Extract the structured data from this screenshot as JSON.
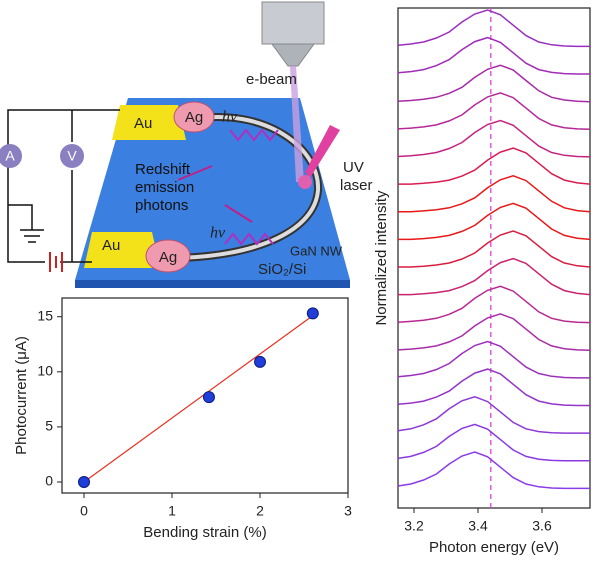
{
  "diagram": {
    "e_beam": "e-beam",
    "au_top": "Au",
    "ag_top": "Ag",
    "au_bottom": "Au",
    "ag_bottom": "Ag",
    "hv_top": "hν",
    "hv_bottom": "hν",
    "uv": "UV",
    "laser": "laser",
    "redshift": "Redshift",
    "emission": "emission",
    "photons": "photons",
    "gan": "GaN NW",
    "substrate": "SiO₂/Si",
    "ammeter": "A",
    "voltmeter": "V"
  },
  "chart_data": [
    {
      "type": "scatter",
      "x_label": "Bending strain (%)",
      "y_label": "Photocurrent (μA)",
      "x": [
        0,
        1.42,
        2,
        2.6
      ],
      "values": [
        0,
        7.7,
        10.9,
        15.3
      ],
      "color": "#1f3fd8",
      "xlim": [
        -0.25,
        3
      ],
      "ylim": [
        -1,
        16.7
      ],
      "xticks": [
        0,
        1,
        2,
        3
      ],
      "yticks": [
        0,
        5,
        10,
        15
      ],
      "fit_line": {
        "x": [
          0,
          2.6
        ],
        "values": [
          0,
          15.1
        ],
        "color": "#e83020"
      }
    },
    {
      "type": "line",
      "x_label": "Photon energy (eV)",
      "y_label": "Normalized intensity",
      "x": [
        3.15,
        3.19,
        3.23,
        3.27,
        3.31,
        3.35,
        3.39,
        3.43,
        3.47,
        3.51,
        3.55,
        3.59,
        3.63,
        3.67,
        3.71,
        3.75
      ],
      "xlim": [
        3.15,
        3.75
      ],
      "xticks": [
        3.2,
        3.4,
        3.6
      ],
      "reference_line": {
        "x": 3.44,
        "color": "#e040e0"
      },
      "series": [
        {
          "color": "#9a2fc0",
          "values": [
            0.12,
            0.15,
            0.2,
            0.3,
            0.45,
            0.7,
            0.9,
            1,
            0.88,
            0.62,
            0.36,
            0.2,
            0.13,
            0.1,
            0.09,
            0.09
          ]
        },
        {
          "color": "#a02cb8",
          "values": [
            0.12,
            0.15,
            0.2,
            0.3,
            0.45,
            0.7,
            0.9,
            1,
            0.88,
            0.62,
            0.36,
            0.2,
            0.13,
            0.1,
            0.09,
            0.09
          ]
        },
        {
          "color": "#a82aa8",
          "values": [
            0.1,
            0.12,
            0.15,
            0.2,
            0.3,
            0.45,
            0.7,
            0.9,
            1,
            0.88,
            0.62,
            0.36,
            0.2,
            0.13,
            0.1,
            0.09
          ]
        },
        {
          "color": "#b42898",
          "values": [
            0.1,
            0.12,
            0.15,
            0.2,
            0.3,
            0.45,
            0.7,
            0.9,
            1,
            0.88,
            0.62,
            0.36,
            0.2,
            0.13,
            0.1,
            0.09
          ]
        },
        {
          "color": "#c42480",
          "values": [
            0.1,
            0.12,
            0.15,
            0.2,
            0.3,
            0.45,
            0.7,
            0.9,
            1,
            0.88,
            0.62,
            0.36,
            0.2,
            0.13,
            0.1,
            0.09
          ]
        },
        {
          "color": "#d81e50",
          "values": [
            0.1,
            0.1,
            0.12,
            0.15,
            0.2,
            0.3,
            0.45,
            0.7,
            0.9,
            1,
            0.88,
            0.62,
            0.36,
            0.2,
            0.13,
            0.1
          ]
        },
        {
          "color": "#e81818",
          "values": [
            0.1,
            0.1,
            0.12,
            0.15,
            0.2,
            0.3,
            0.45,
            0.7,
            0.9,
            1,
            0.88,
            0.62,
            0.36,
            0.2,
            0.13,
            0.1
          ]
        },
        {
          "color": "#e81818",
          "values": [
            0.1,
            0.1,
            0.12,
            0.15,
            0.2,
            0.3,
            0.45,
            0.7,
            0.9,
            1,
            0.88,
            0.62,
            0.36,
            0.2,
            0.13,
            0.1
          ]
        },
        {
          "color": "#d81e40",
          "values": [
            0.1,
            0.1,
            0.12,
            0.15,
            0.2,
            0.3,
            0.45,
            0.7,
            0.9,
            1,
            0.88,
            0.62,
            0.36,
            0.2,
            0.13,
            0.1
          ]
        },
        {
          "color": "#c82470",
          "values": [
            0.1,
            0.1,
            0.12,
            0.15,
            0.2,
            0.3,
            0.45,
            0.7,
            0.9,
            1,
            0.88,
            0.62,
            0.36,
            0.2,
            0.13,
            0.1
          ]
        },
        {
          "color": "#b82890",
          "values": [
            0.1,
            0.12,
            0.15,
            0.2,
            0.3,
            0.45,
            0.7,
            0.9,
            1,
            0.88,
            0.62,
            0.36,
            0.2,
            0.13,
            0.1,
            0.09
          ]
        },
        {
          "color": "#a82ca8",
          "values": [
            0.1,
            0.12,
            0.15,
            0.2,
            0.3,
            0.45,
            0.7,
            0.9,
            1,
            0.88,
            0.62,
            0.36,
            0.2,
            0.13,
            0.1,
            0.09
          ]
        },
        {
          "color": "#9c30bc",
          "values": [
            0.12,
            0.15,
            0.2,
            0.3,
            0.45,
            0.7,
            0.9,
            1,
            0.88,
            0.62,
            0.36,
            0.2,
            0.13,
            0.1,
            0.09,
            0.09
          ]
        },
        {
          "color": "#9434c8",
          "values": [
            0.12,
            0.15,
            0.2,
            0.3,
            0.45,
            0.7,
            0.9,
            1,
            0.88,
            0.62,
            0.36,
            0.2,
            0.13,
            0.1,
            0.09,
            0.09
          ]
        },
        {
          "color": "#8c38d4",
          "values": [
            0.15,
            0.2,
            0.3,
            0.45,
            0.7,
            0.9,
            1,
            0.88,
            0.62,
            0.36,
            0.2,
            0.13,
            0.1,
            0.09,
            0.09,
            0.09
          ]
        },
        {
          "color": "#8a3ae0",
          "values": [
            0.15,
            0.2,
            0.3,
            0.45,
            0.7,
            0.9,
            1,
            0.88,
            0.62,
            0.36,
            0.2,
            0.13,
            0.1,
            0.09,
            0.09,
            0.09
          ]
        },
        {
          "color": "#8a3ce8",
          "values": [
            0.15,
            0.2,
            0.3,
            0.45,
            0.7,
            0.9,
            1,
            0.88,
            0.62,
            0.36,
            0.2,
            0.13,
            0.1,
            0.09,
            0.09,
            0.09
          ]
        }
      ]
    }
  ]
}
